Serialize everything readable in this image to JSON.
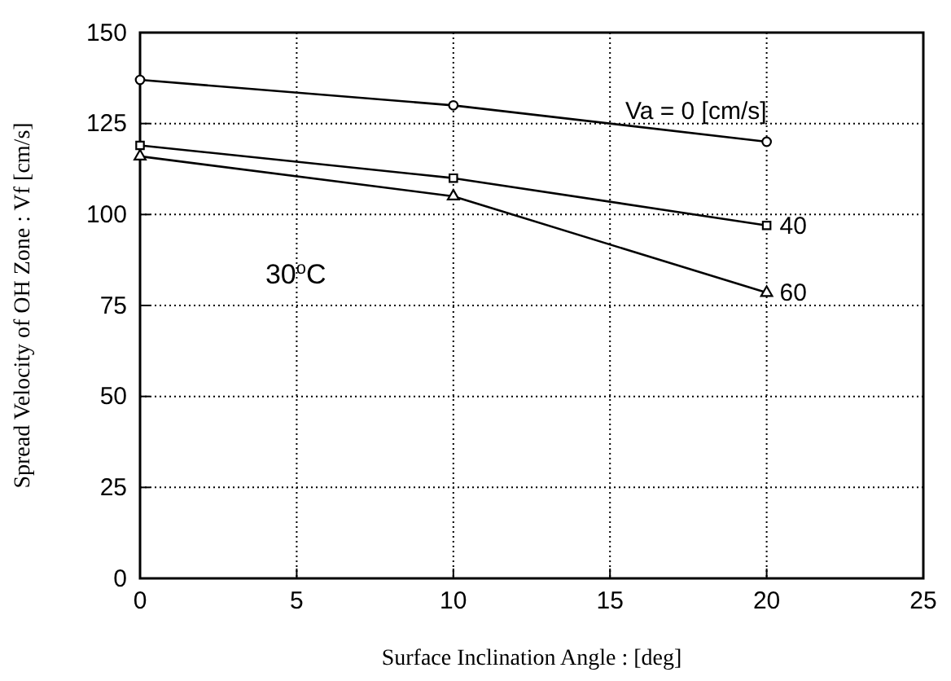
{
  "chart_data": {
    "type": "line",
    "xlabel": "Surface Inclination Angle : [deg]",
    "ylabel": "Spread Velocity of OH Zone : Vf [cm/s]",
    "xlim": [
      0,
      25
    ],
    "xticks": [
      0,
      5,
      10,
      15,
      20,
      25
    ],
    "ylim": [
      0,
      150
    ],
    "yticks": [
      0,
      25,
      50,
      75,
      100,
      125,
      150
    ],
    "grid": true,
    "line_style": "solid",
    "series": [
      {
        "name": "Va = 0 [cm/s]",
        "color": "#000000",
        "marker": "circle",
        "x": [
          0,
          10,
          20
        ],
        "values": [
          137,
          130,
          120
        ]
      },
      {
        "name": "40",
        "color": "#000000",
        "marker": "square",
        "x": [
          0,
          10,
          20
        ],
        "values": [
          119,
          110,
          97
        ]
      },
      {
        "name": "60",
        "color": "#000000",
        "marker": "triangle",
        "x": [
          0,
          10,
          20
        ],
        "values": [
          116,
          105,
          78.5
        ]
      }
    ],
    "annotations": [
      "30$^{o}$C"
    ]
  }
}
